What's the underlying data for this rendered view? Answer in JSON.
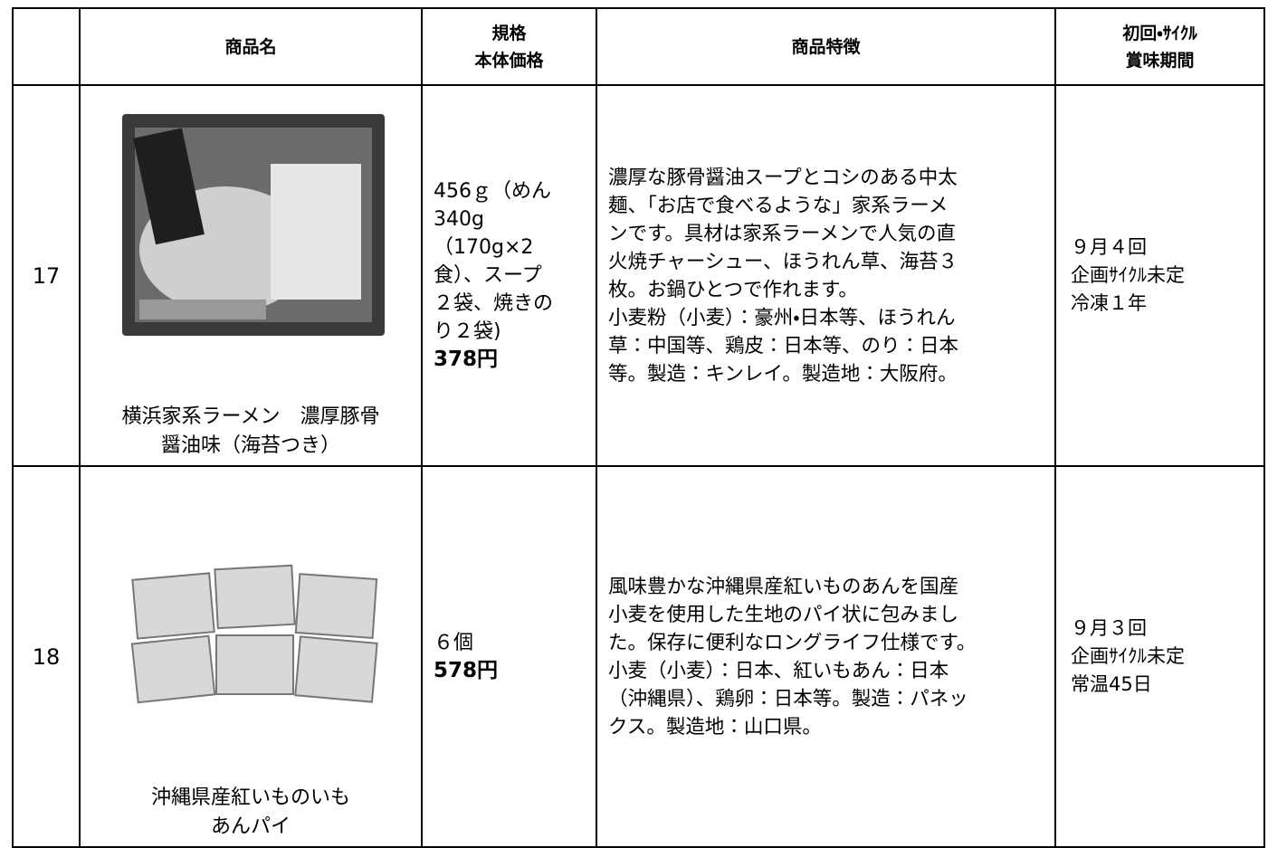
{
  "table": {
    "header": {
      "name": "商品名",
      "spec": [
        "規格",
        "本体価格"
      ],
      "features": "商品特徴",
      "period": [
        "初回・ｻｲｸﾙ",
        "賞味期間"
      ]
    },
    "rows": [
      {
        "number": 17,
        "name": [
          "横浜家系ラーメン　濃厚豚骨",
          "醤油味（海苔つき）"
        ],
        "spec": [
          "456ｇ（めん",
          "340g",
          "（170g×2",
          "食）、スープ",
          "２袋、焼きの",
          "り２袋)"
        ],
        "price": "378円",
        "features": [
          "濃厚な豚骨醤油スープとコシのある中太",
          "麺、「お店で食べるような」家系ラーメ",
          "ンです。具材は家系ラーメンで人気の直",
          "火焼チャーシュー、ほうれん草、海苔３",
          "枚。お鍋ひとつで作れます。",
          "小麦粉（小麦）：豪州・日本等、ほうれん",
          "草：中国等、鶏皮：日本等、のり：日本",
          "等。製造：キンレイ。製造地：大阪府。"
        ],
        "period": [
          "９月４回",
          "企画ｻｲｸﾙ未定",
          "冷凍１年"
        ]
      },
      {
        "number": 18,
        "name": [
          "沖縄県産紅いものいも",
          "あんパイ"
        ],
        "spec": [
          "６個"
        ],
        "price": "578円",
        "features": [
          "風味豊かな沖縄県産紅いものあんを国産",
          "小麦を使用した生地のパイ状に包みまし",
          "た。保存に便利なロングライフ仕様です。",
          "小麦（小麦）：日本、紅いもあん：日本",
          "（沖縄県）、鶏卵：日本等。製造：パネッ",
          "クス。製造地：山口県。"
        ],
        "period": [
          "９月３回",
          "企画ｻｲｸﾙ未定",
          "常温45日"
        ]
      }
    ]
  }
}
